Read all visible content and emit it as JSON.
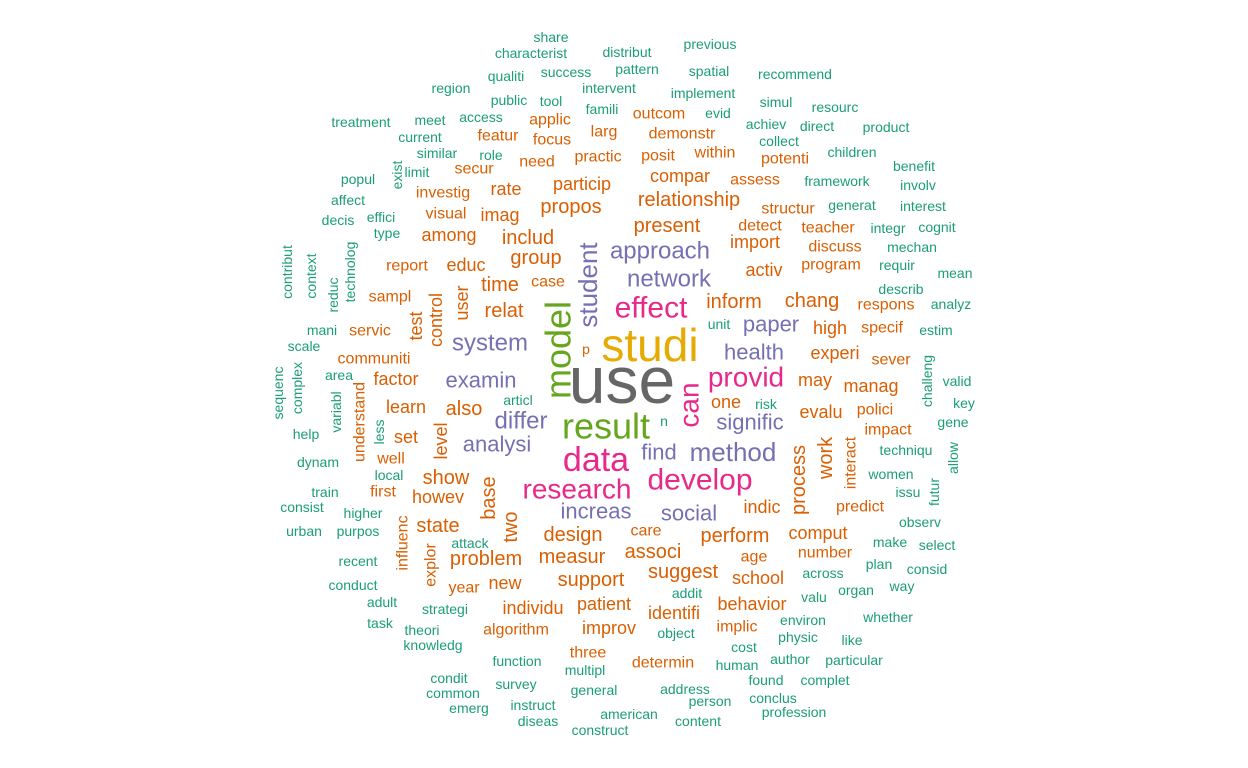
{
  "word_cloud": {
    "words": [
      {
        "text": "use",
        "color": "#666666"
      },
      {
        "text": "studi",
        "color": "#E6AB02"
      },
      {
        "text": "result",
        "color": "#66A61E"
      },
      {
        "text": "model",
        "color": "#66A61E"
      },
      {
        "text": "data",
        "color": "#E7298A"
      },
      {
        "text": "effect",
        "color": "#E7298A"
      },
      {
        "text": "develop",
        "color": "#E7298A"
      },
      {
        "text": "research",
        "color": "#E7298A"
      },
      {
        "text": "provid",
        "color": "#E7298A"
      },
      {
        "text": "can",
        "color": "#E7298A"
      },
      {
        "text": "student",
        "color": "#7570B3"
      },
      {
        "text": "method",
        "color": "#7570B3"
      },
      {
        "text": "approach",
        "color": "#7570B3"
      },
      {
        "text": "network",
        "color": "#7570B3"
      },
      {
        "text": "system",
        "color": "#7570B3"
      },
      {
        "text": "differ",
        "color": "#7570B3"
      },
      {
        "text": "examin",
        "color": "#7570B3"
      },
      {
        "text": "analysi",
        "color": "#7570B3"
      },
      {
        "text": "social",
        "color": "#7570B3"
      },
      {
        "text": "increas",
        "color": "#7570B3"
      },
      {
        "text": "health",
        "color": "#7570B3"
      },
      {
        "text": "paper",
        "color": "#7570B3"
      },
      {
        "text": "signific",
        "color": "#7570B3"
      },
      {
        "text": "find",
        "color": "#7570B3"
      },
      {
        "text": "includ",
        "color": "#D95F02"
      },
      {
        "text": "group",
        "color": "#D95F02"
      },
      {
        "text": "time",
        "color": "#D95F02"
      },
      {
        "text": "relat",
        "color": "#D95F02"
      },
      {
        "text": "present",
        "color": "#D95F02"
      },
      {
        "text": "relationship",
        "color": "#D95F02"
      },
      {
        "text": "inform",
        "color": "#D95F02"
      },
      {
        "text": "chang",
        "color": "#D95F02"
      },
      {
        "text": "propos",
        "color": "#D95F02"
      },
      {
        "text": "design",
        "color": "#D95F02"
      },
      {
        "text": "measur",
        "color": "#D95F02"
      },
      {
        "text": "associ",
        "color": "#D95F02"
      },
      {
        "text": "perform",
        "color": "#D95F02"
      },
      {
        "text": "base",
        "color": "#D95F02"
      },
      {
        "text": "two",
        "color": "#D95F02"
      },
      {
        "text": "support",
        "color": "#D95F02"
      },
      {
        "text": "suggest",
        "color": "#D95F02"
      },
      {
        "text": "process",
        "color": "#D95F02"
      },
      {
        "text": "work",
        "color": "#D95F02"
      },
      {
        "text": "also",
        "color": "#D95F02"
      },
      {
        "text": "show",
        "color": "#D95F02"
      },
      {
        "text": "state",
        "color": "#D95F02"
      },
      {
        "text": "problem",
        "color": "#D95F02"
      },
      {
        "text": "patient",
        "color": "#D95F02"
      },
      {
        "text": "identifi",
        "color": "#D95F02"
      },
      {
        "text": "behavior",
        "color": "#D95F02"
      },
      {
        "text": "improv",
        "color": "#D95F02"
      },
      {
        "text": "individu",
        "color": "#D95F02"
      },
      {
        "text": "new",
        "color": "#D95F02"
      },
      {
        "text": "school",
        "color": "#D95F02"
      },
      {
        "text": "comput",
        "color": "#D95F02"
      },
      {
        "text": "indic",
        "color": "#D95F02"
      },
      {
        "text": "evalu",
        "color": "#D95F02"
      },
      {
        "text": "may",
        "color": "#D95F02"
      },
      {
        "text": "experi",
        "color": "#D95F02"
      },
      {
        "text": "high",
        "color": "#D95F02"
      },
      {
        "text": "activ",
        "color": "#D95F02"
      },
      {
        "text": "import",
        "color": "#D95F02"
      },
      {
        "text": "one",
        "color": "#D95F02"
      },
      {
        "text": "particip",
        "color": "#D95F02"
      },
      {
        "text": "compar",
        "color": "#D95F02"
      },
      {
        "text": "rate",
        "color": "#D95F02"
      },
      {
        "text": "imag",
        "color": "#D95F02"
      },
      {
        "text": "among",
        "color": "#D95F02"
      },
      {
        "text": "educ",
        "color": "#D95F02"
      },
      {
        "text": "user",
        "color": "#D95F02"
      },
      {
        "text": "test",
        "color": "#D95F02"
      },
      {
        "text": "control",
        "color": "#D95F02"
      },
      {
        "text": "factor",
        "color": "#D95F02"
      },
      {
        "text": "learn",
        "color": "#D95F02"
      },
      {
        "text": "set",
        "color": "#D95F02"
      },
      {
        "text": "level",
        "color": "#D95F02"
      },
      {
        "text": "well",
        "color": "#D95F02"
      },
      {
        "text": "howev",
        "color": "#D95F02"
      },
      {
        "text": "first",
        "color": "#D95F02"
      },
      {
        "text": "understand",
        "color": "#D95F02"
      },
      {
        "text": "care",
        "color": "#D95F02"
      },
      {
        "text": "age",
        "color": "#D95F02"
      },
      {
        "text": "number",
        "color": "#D95F02"
      },
      {
        "text": "manag",
        "color": "#D95F02"
      },
      {
        "text": "polici",
        "color": "#D95F02"
      },
      {
        "text": "impact",
        "color": "#D95F02"
      },
      {
        "text": "interact",
        "color": "#D95F02"
      },
      {
        "text": "predict",
        "color": "#D95F02"
      },
      {
        "text": "sever",
        "color": "#D95F02"
      },
      {
        "text": "specif",
        "color": "#D95F02"
      },
      {
        "text": "respons",
        "color": "#D95F02"
      },
      {
        "text": "program",
        "color": "#D95F02"
      },
      {
        "text": "discuss",
        "color": "#D95F02"
      },
      {
        "text": "teacher",
        "color": "#D95F02"
      },
      {
        "text": "detect",
        "color": "#D95F02"
      },
      {
        "text": "structur",
        "color": "#D95F02"
      },
      {
        "text": "assess",
        "color": "#D95F02"
      },
      {
        "text": "potenti",
        "color": "#D95F02"
      },
      {
        "text": "within",
        "color": "#D95F02"
      },
      {
        "text": "posit",
        "color": "#D95F02"
      },
      {
        "text": "practic",
        "color": "#D95F02"
      },
      {
        "text": "need",
        "color": "#D95F02"
      },
      {
        "text": "secur",
        "color": "#D95F02"
      },
      {
        "text": "investig",
        "color": "#D95F02"
      },
      {
        "text": "visual",
        "color": "#D95F02"
      },
      {
        "text": "report",
        "color": "#D95F02"
      },
      {
        "text": "sampl",
        "color": "#D95F02"
      },
      {
        "text": "servic",
        "color": "#D95F02"
      },
      {
        "text": "communiti",
        "color": "#D95F02"
      },
      {
        "text": "case",
        "color": "#D95F02"
      },
      {
        "text": "featur",
        "color": "#D95F02"
      },
      {
        "text": "focus",
        "color": "#D95F02"
      },
      {
        "text": "larg",
        "color": "#D95F02"
      },
      {
        "text": "demonstr",
        "color": "#D95F02"
      },
      {
        "text": "applic",
        "color": "#D95F02"
      },
      {
        "text": "outcom",
        "color": "#D95F02"
      },
      {
        "text": "influenc",
        "color": "#D95F02"
      },
      {
        "text": "explor",
        "color": "#D95F02"
      },
      {
        "text": "year",
        "color": "#D95F02"
      },
      {
        "text": "algorithm",
        "color": "#D95F02"
      },
      {
        "text": "determin",
        "color": "#D95F02"
      },
      {
        "text": "implic",
        "color": "#D95F02"
      },
      {
        "text": "three",
        "color": "#D95F02"
      },
      {
        "text": "p",
        "color": "#D95F02"
      },
      {
        "text": "share",
        "color": "#1B9E77"
      },
      {
        "text": "characterist",
        "color": "#1B9E77"
      },
      {
        "text": "distribut",
        "color": "#1B9E77"
      },
      {
        "text": "previous",
        "color": "#1B9E77"
      },
      {
        "text": "qualiti",
        "color": "#1B9E77"
      },
      {
        "text": "success",
        "color": "#1B9E77"
      },
      {
        "text": "pattern",
        "color": "#1B9E77"
      },
      {
        "text": "spatial",
        "color": "#1B9E77"
      },
      {
        "text": "recommend",
        "color": "#1B9E77"
      },
      {
        "text": "region",
        "color": "#1B9E77"
      },
      {
        "text": "intervent",
        "color": "#1B9E77"
      },
      {
        "text": "implement",
        "color": "#1B9E77"
      },
      {
        "text": "public",
        "color": "#1B9E77"
      },
      {
        "text": "tool",
        "color": "#1B9E77"
      },
      {
        "text": "famili",
        "color": "#1B9E77"
      },
      {
        "text": "evid",
        "color": "#1B9E77"
      },
      {
        "text": "simul",
        "color": "#1B9E77"
      },
      {
        "text": "resourc",
        "color": "#1B9E77"
      },
      {
        "text": "treatment",
        "color": "#1B9E77"
      },
      {
        "text": "meet",
        "color": "#1B9E77"
      },
      {
        "text": "access",
        "color": "#1B9E77"
      },
      {
        "text": "achiev",
        "color": "#1B9E77"
      },
      {
        "text": "direct",
        "color": "#1B9E77"
      },
      {
        "text": "product",
        "color": "#1B9E77"
      },
      {
        "text": "current",
        "color": "#1B9E77"
      },
      {
        "text": "collect",
        "color": "#1B9E77"
      },
      {
        "text": "similar",
        "color": "#1B9E77"
      },
      {
        "text": "role",
        "color": "#1B9E77"
      },
      {
        "text": "children",
        "color": "#1B9E77"
      },
      {
        "text": "exist",
        "color": "#1B9E77"
      },
      {
        "text": "limit",
        "color": "#1B9E77"
      },
      {
        "text": "benefit",
        "color": "#1B9E77"
      },
      {
        "text": "popul",
        "color": "#1B9E77"
      },
      {
        "text": "framework",
        "color": "#1B9E77"
      },
      {
        "text": "involv",
        "color": "#1B9E77"
      },
      {
        "text": "affect",
        "color": "#1B9E77"
      },
      {
        "text": "generat",
        "color": "#1B9E77"
      },
      {
        "text": "interest",
        "color": "#1B9E77"
      },
      {
        "text": "decis",
        "color": "#1B9E77"
      },
      {
        "text": "effici",
        "color": "#1B9E77"
      },
      {
        "text": "integr",
        "color": "#1B9E77"
      },
      {
        "text": "cognit",
        "color": "#1B9E77"
      },
      {
        "text": "type",
        "color": "#1B9E77"
      },
      {
        "text": "technolog",
        "color": "#1B9E77"
      },
      {
        "text": "mechan",
        "color": "#1B9E77"
      },
      {
        "text": "contribut",
        "color": "#1B9E77"
      },
      {
        "text": "context",
        "color": "#1B9E77"
      },
      {
        "text": "requir",
        "color": "#1B9E77"
      },
      {
        "text": "mean",
        "color": "#1B9E77"
      },
      {
        "text": "reduc",
        "color": "#1B9E77"
      },
      {
        "text": "describ",
        "color": "#1B9E77"
      },
      {
        "text": "analyz",
        "color": "#1B9E77"
      },
      {
        "text": "mani",
        "color": "#1B9E77"
      },
      {
        "text": "unit",
        "color": "#1B9E77"
      },
      {
        "text": "estim",
        "color": "#1B9E77"
      },
      {
        "text": "scale",
        "color": "#1B9E77"
      },
      {
        "text": "sequenc",
        "color": "#1B9E77"
      },
      {
        "text": "complex",
        "color": "#1B9E77"
      },
      {
        "text": "area",
        "color": "#1B9E77"
      },
      {
        "text": "challeng",
        "color": "#1B9E77"
      },
      {
        "text": "valid",
        "color": "#1B9E77"
      },
      {
        "text": "variabl",
        "color": "#1B9E77"
      },
      {
        "text": "articl",
        "color": "#1B9E77"
      },
      {
        "text": "risk",
        "color": "#1B9E77"
      },
      {
        "text": "key",
        "color": "#1B9E77"
      },
      {
        "text": "help",
        "color": "#1B9E77"
      },
      {
        "text": "less",
        "color": "#1B9E77"
      },
      {
        "text": "n",
        "color": "#1B9E77"
      },
      {
        "text": "gene",
        "color": "#1B9E77"
      },
      {
        "text": "techniqu",
        "color": "#1B9E77"
      },
      {
        "text": "allow",
        "color": "#1B9E77"
      },
      {
        "text": "dynam",
        "color": "#1B9E77"
      },
      {
        "text": "local",
        "color": "#1B9E77"
      },
      {
        "text": "women",
        "color": "#1B9E77"
      },
      {
        "text": "train",
        "color": "#1B9E77"
      },
      {
        "text": "futur",
        "color": "#1B9E77"
      },
      {
        "text": "issu",
        "color": "#1B9E77"
      },
      {
        "text": "consist",
        "color": "#1B9E77"
      },
      {
        "text": "higher",
        "color": "#1B9E77"
      },
      {
        "text": "observ",
        "color": "#1B9E77"
      },
      {
        "text": "urban",
        "color": "#1B9E77"
      },
      {
        "text": "purpos",
        "color": "#1B9E77"
      },
      {
        "text": "attack",
        "color": "#1B9E77"
      },
      {
        "text": "make",
        "color": "#1B9E77"
      },
      {
        "text": "select",
        "color": "#1B9E77"
      },
      {
        "text": "recent",
        "color": "#1B9E77"
      },
      {
        "text": "plan",
        "color": "#1B9E77"
      },
      {
        "text": "consid",
        "color": "#1B9E77"
      },
      {
        "text": "across",
        "color": "#1B9E77"
      },
      {
        "text": "conduct",
        "color": "#1B9E77"
      },
      {
        "text": "organ",
        "color": "#1B9E77"
      },
      {
        "text": "way",
        "color": "#1B9E77"
      },
      {
        "text": "addit",
        "color": "#1B9E77"
      },
      {
        "text": "valu",
        "color": "#1B9E77"
      },
      {
        "text": "adult",
        "color": "#1B9E77"
      },
      {
        "text": "strategi",
        "color": "#1B9E77"
      },
      {
        "text": "whether",
        "color": "#1B9E77"
      },
      {
        "text": "task",
        "color": "#1B9E77"
      },
      {
        "text": "theori",
        "color": "#1B9E77"
      },
      {
        "text": "object",
        "color": "#1B9E77"
      },
      {
        "text": "environ",
        "color": "#1B9E77"
      },
      {
        "text": "physic",
        "color": "#1B9E77"
      },
      {
        "text": "like",
        "color": "#1B9E77"
      },
      {
        "text": "knowledg",
        "color": "#1B9E77"
      },
      {
        "text": "cost",
        "color": "#1B9E77"
      },
      {
        "text": "function",
        "color": "#1B9E77"
      },
      {
        "text": "multipl",
        "color": "#1B9E77"
      },
      {
        "text": "human",
        "color": "#1B9E77"
      },
      {
        "text": "author",
        "color": "#1B9E77"
      },
      {
        "text": "particular",
        "color": "#1B9E77"
      },
      {
        "text": "condit",
        "color": "#1B9E77"
      },
      {
        "text": "survey",
        "color": "#1B9E77"
      },
      {
        "text": "found",
        "color": "#1B9E77"
      },
      {
        "text": "complet",
        "color": "#1B9E77"
      },
      {
        "text": "common",
        "color": "#1B9E77"
      },
      {
        "text": "general",
        "color": "#1B9E77"
      },
      {
        "text": "address",
        "color": "#1B9E77"
      },
      {
        "text": "conclus",
        "color": "#1B9E77"
      },
      {
        "text": "emerg",
        "color": "#1B9E77"
      },
      {
        "text": "instruct",
        "color": "#1B9E77"
      },
      {
        "text": "person",
        "color": "#1B9E77"
      },
      {
        "text": "profession",
        "color": "#1B9E77"
      },
      {
        "text": "american",
        "color": "#1B9E77"
      },
      {
        "text": "diseas",
        "color": "#1B9E77"
      },
      {
        "text": "content",
        "color": "#1B9E77"
      },
      {
        "text": "construct",
        "color": "#1B9E77"
      }
    ]
  }
}
